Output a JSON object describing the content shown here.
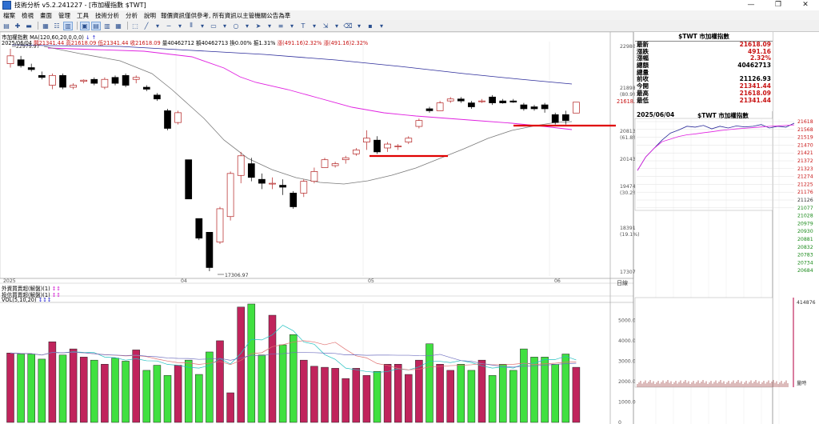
{
  "window": {
    "title": "技術分析 v5.2.241227 - [市加權指數 $TWT]",
    "buttons": [
      "—",
      "❐",
      "✕"
    ]
  },
  "menubar": {
    "items": [
      "檔案",
      "檢視",
      "畫面",
      "管理",
      "工具",
      "技術分析",
      "分析",
      "說明"
    ],
    "notice": "報價資訊僅供參考, 所有資訊以主管機關公告為準"
  },
  "chart_info": {
    "line1_prefix": "市加權指數",
    "ma_label": "MA(120,60,20,0,0,0)",
    "arrows": "↓ ↑",
    "line2": [
      {
        "t": "2025/06/04 ",
        "c": ""
      },
      {
        "t": "開21341.44 ",
        "c": "red"
      },
      {
        "t": "高21618.09 ",
        "c": "red"
      },
      {
        "t": "低21341.44 ",
        "c": "red"
      },
      {
        "t": "收21618.09 ",
        "c": "red"
      },
      {
        "t": "量40462712 ",
        "c": ""
      },
      {
        "t": "額40462713 ",
        "c": ""
      },
      {
        "t": "換0.00% ",
        "c": ""
      },
      {
        "t": "振1.31% ",
        "c": ""
      },
      {
        "t": "漲(491.16)2.32% ",
        "c": "red"
      },
      {
        "t": "漲(491.16)2.32%",
        "c": "red"
      }
    ]
  },
  "axis_labels": {
    "price_ticks": [
      "22980",
      "21898",
      "(80.9%)",
      "20813",
      "(61.8%)",
      "20143",
      "19474",
      "(30.2%)",
      "18391",
      "(19.1%)",
      "17307"
    ],
    "current_price": "21618.1",
    "low_annotation": "17306.97",
    "high_annotation": "22979.97",
    "month_labels": [
      "2025",
      "04",
      "05",
      "06"
    ],
    "date_axis_name": "日線",
    "vol_ticks": [
      "5000.0",
      "4000.0",
      "3000.0",
      "2000.0",
      "1000.0",
      "0"
    ]
  },
  "indicators": {
    "foreign": "外資買賣超(解盤)(1)",
    "dealer": "投信買賣超(解盤)(1)",
    "vol_label": "VOL(5,10,20)"
  },
  "quote": {
    "title": "$TWT 市加權指數",
    "rows": [
      {
        "k": "最新",
        "v": "21618.09",
        "c": "red"
      },
      {
        "k": "漲跌",
        "v": "491.16",
        "c": "red"
      },
      {
        "k": "漲幅",
        "v": "2.32%",
        "c": "red"
      },
      {
        "k": "總額",
        "v": "40462713",
        "c": ""
      },
      {
        "k": "總量",
        "v": "",
        "c": ""
      },
      {
        "k": "前收",
        "v": "21126.93",
        "c": ""
      },
      {
        "k": "今開",
        "v": "21341.44",
        "c": "red"
      },
      {
        "k": "最高",
        "v": "21618.09",
        "c": "red"
      },
      {
        "k": "最低",
        "v": "21341.44",
        "c": "red"
      }
    ]
  },
  "mini_chart": {
    "date": "2025/06/04",
    "title": "$TWT 市加權指數",
    "price_labels": [
      "21618",
      "21568",
      "21519",
      "21470",
      "21421",
      "21372",
      "21323",
      "21274",
      "21225",
      "21176",
      "21126",
      "21077",
      "21028",
      "20979",
      "20930",
      "20881",
      "20832",
      "20783",
      "20734",
      "20684"
    ],
    "vol_max": "414876",
    "vol_label": "量時"
  },
  "chart_data": {
    "type": "candlestick",
    "candles": [
      [
        22600,
        22980,
        22500,
        22800
      ],
      [
        22700,
        22800,
        22500,
        22550
      ],
      [
        22500,
        22600,
        22400,
        22450
      ],
      [
        22300,
        22400,
        22200,
        22250
      ],
      [
        22050,
        22350,
        21950,
        22300
      ],
      [
        22300,
        22350,
        21950,
        22000
      ],
      [
        22000,
        22100,
        21950,
        22050
      ],
      [
        22150,
        22200,
        22100,
        22180
      ],
      [
        22200,
        22250,
        22050,
        22100
      ],
      [
        22000,
        22250,
        21950,
        22200
      ],
      [
        22250,
        22300,
        22050,
        22100
      ],
      [
        22300,
        22350,
        22000,
        22050
      ],
      [
        22200,
        22300,
        22100,
        22250
      ],
      [
        22000,
        22050,
        21900,
        21950
      ],
      [
        21800,
        21850,
        21650,
        21700
      ],
      [
        21400,
        21450,
        20900,
        20950
      ],
      [
        21100,
        21400,
        21050,
        21350
      ],
      [
        20150,
        20150,
        19150,
        19150
      ],
      [
        18650,
        18650,
        18100,
        18150
      ],
      [
        18300,
        18300,
        17307,
        17400
      ],
      [
        18050,
        18950,
        18000,
        18900
      ],
      [
        18700,
        19850,
        18600,
        19800
      ],
      [
        19750,
        20350,
        19550,
        20250
      ],
      [
        20050,
        20200,
        19600,
        19700
      ],
      [
        19650,
        19800,
        19400,
        19550
      ],
      [
        19550,
        19700,
        19400,
        19550
      ],
      [
        19500,
        19650,
        19250,
        19450
      ],
      [
        19300,
        19350,
        18900,
        18950
      ],
      [
        19300,
        19650,
        19200,
        19600
      ],
      [
        19600,
        19950,
        19550,
        19850
      ],
      [
        19950,
        20200,
        19950,
        20150
      ],
      [
        20000,
        20100,
        19950,
        20050
      ],
      [
        20150,
        20250,
        20050,
        20200
      ],
      [
        20300,
        20450,
        20250,
        20400
      ],
      [
        20600,
        20900,
        20400,
        20700
      ],
      [
        20650,
        20750,
        20300,
        20350
      ],
      [
        20450,
        20600,
        20350,
        20550
      ],
      [
        20500,
        20550,
        20400,
        20500
      ],
      [
        20600,
        20750,
        20550,
        20700
      ],
      [
        21000,
        21200,
        20950,
        21150
      ],
      [
        21450,
        21500,
        21350,
        21400
      ],
      [
        21400,
        21650,
        21400,
        21600
      ],
      [
        21650,
        21750,
        21600,
        21700
      ],
      [
        21700,
        21750,
        21600,
        21650
      ],
      [
        21600,
        21650,
        21450,
        21500
      ],
      [
        21650,
        21700,
        21600,
        21650
      ],
      [
        21750,
        21800,
        21550,
        21600
      ],
      [
        21650,
        21700,
        21580,
        21600
      ],
      [
        21650,
        21700,
        21600,
        21620
      ],
      [
        21550,
        21600,
        21400,
        21450
      ],
      [
        21500,
        21550,
        21400,
        21450
      ],
      [
        21550,
        21600,
        21350,
        21450
      ],
      [
        21300,
        21350,
        21050,
        21100
      ],
      [
        21300,
        21400,
        21050,
        21150
      ],
      [
        21341.44,
        21618.09,
        21341.44,
        21618.09
      ]
    ],
    "ma_series": [
      {
        "name": "MA120",
        "color": "#2b2b9a"
      },
      {
        "name": "MA60",
        "color": "#e020e0"
      },
      {
        "name": "MA20",
        "color": "#7a7a7a"
      }
    ],
    "ylim": [
      17307,
      22980
    ],
    "volume": [
      3400,
      3350,
      3350,
      3100,
      3950,
      3300,
      3600,
      3200,
      3050,
      2850,
      3150,
      3000,
      3550,
      2550,
      2800,
      2300,
      2800,
      3050,
      2350,
      3450,
      4000,
      1450,
      5650,
      5800,
      3300,
      5250,
      3800,
      4300,
      3050,
      2750,
      2700,
      2650,
      2150,
      2650,
      2300,
      2500,
      2850,
      2850,
      2350,
      3050,
      3850,
      2850,
      2550,
      2850,
      2550,
      3050,
      2300,
      2850,
      2550,
      3600,
      3200,
      3200,
      2850,
      3350,
      2700
    ],
    "vol_ylim": [
      0,
      5800
    ],
    "vol_ma_colors": [
      "#20c0c0",
      "#e07070",
      "#7070c0"
    ],
    "support_lines": [
      {
        "y": 20200,
        "color": "#e00000"
      },
      {
        "y": 21100,
        "color": "#e00000"
      }
    ],
    "mini_price": [
      21341,
      21420,
      21470,
      21520,
      21560,
      21578,
      21600,
      21595,
      21605,
      21585,
      21600,
      21590,
      21602,
      21596,
      21600,
      21610,
      21590,
      21600,
      21595,
      21618
    ],
    "mini_ma": [
      21341,
      21420,
      21470,
      21510,
      21525,
      21540,
      21550,
      21555,
      21562,
      21568,
      21575,
      21580,
      21585,
      21588,
      21592,
      21596,
      21600,
      21602,
      21605,
      21608
    ],
    "mini_ylim": [
      21126,
      21618
    ]
  }
}
